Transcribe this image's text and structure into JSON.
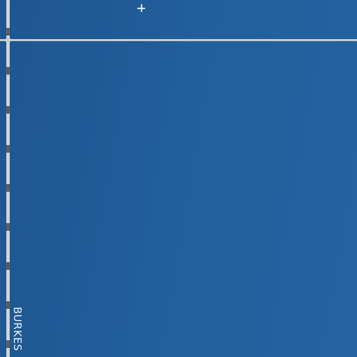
{
  "map": {
    "water_color": "#1f5a92",
    "road_color": "#c9ccd1",
    "road_dash_color": "#5e6064",
    "street_label": "BURKES",
    "marker_icon": "crosshair-icon"
  }
}
